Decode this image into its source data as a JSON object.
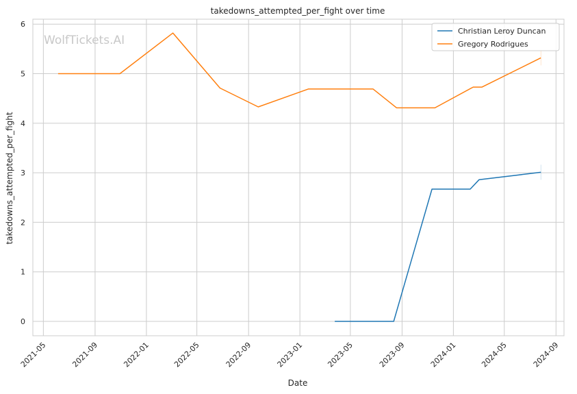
{
  "watermark": "WolfTickets.AI",
  "chart_data": {
    "type": "line",
    "title": "takedowns_attempted_per_fight over time",
    "xlabel": "Date",
    "ylabel": "takedowns_attempted_per_fight",
    "x_axis_type": "date",
    "xlim": [
      "2021-04-06",
      "2024-09-20"
    ],
    "ylim": [
      -0.29,
      6.1
    ],
    "x_ticks": [
      "2021-05",
      "2021-09",
      "2022-01",
      "2022-05",
      "2022-09",
      "2023-01",
      "2023-05",
      "2023-09",
      "2024-01",
      "2024-05",
      "2024-09"
    ],
    "y_ticks": [
      0,
      1,
      2,
      3,
      4,
      5,
      6
    ],
    "grid": true,
    "legend_position": "top-right",
    "series": [
      {
        "name": "Christian Leroy Duncan",
        "color": "#1f77b4",
        "points": [
          {
            "x": "2023-03-25",
            "y": 0.0
          },
          {
            "x": "2023-08-12",
            "y": 0.0
          },
          {
            "x": "2023-11-11",
            "y": 2.67
          },
          {
            "x": "2024-02-10",
            "y": 2.67
          },
          {
            "x": "2024-03-02",
            "y": 2.86
          },
          {
            "x": "2024-07-27",
            "y": 3.01
          }
        ]
      },
      {
        "name": "Gregory Rodrigues",
        "color": "#ff7f0e",
        "points": [
          {
            "x": "2021-06-05",
            "y": 5.0
          },
          {
            "x": "2021-10-30",
            "y": 5.0
          },
          {
            "x": "2022-03-05",
            "y": 5.82
          },
          {
            "x": "2022-06-25",
            "y": 4.71
          },
          {
            "x": "2022-09-24",
            "y": 4.33
          },
          {
            "x": "2023-01-21",
            "y": 4.69
          },
          {
            "x": "2023-06-24",
            "y": 4.69
          },
          {
            "x": "2023-08-19",
            "y": 4.31
          },
          {
            "x": "2023-11-18",
            "y": 4.31
          },
          {
            "x": "2024-02-17",
            "y": 4.73
          },
          {
            "x": "2024-03-09",
            "y": 4.73
          },
          {
            "x": "2024-07-27",
            "y": 5.32
          }
        ]
      }
    ]
  }
}
